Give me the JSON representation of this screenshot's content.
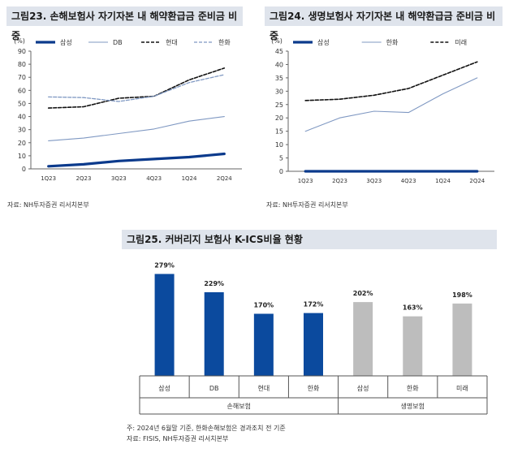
{
  "chart_data": [
    {
      "type": "line",
      "title": "그림23. 손해보험사 자기자본 내 해약환급금 준비금 비중",
      "ylabel": "(%)",
      "ylim": [
        0,
        90
      ],
      "yticks": [
        0,
        10,
        20,
        30,
        40,
        50,
        60,
        70,
        80,
        90
      ],
      "categories": [
        "1Q23",
        "2Q23",
        "3Q23",
        "4Q23",
        "1Q24",
        "2Q24"
      ],
      "series": [
        {
          "name": "삼성",
          "values": [
            2,
            3.5,
            6,
            7.5,
            9,
            11.5
          ],
          "style": "thick",
          "color": "#0b3a8c"
        },
        {
          "name": "DB",
          "values": [
            21.5,
            23.5,
            27,
            30.5,
            36.5,
            40
          ],
          "style": "thin",
          "color": "#7f98c2"
        },
        {
          "name": "현대",
          "values": [
            46.5,
            47.5,
            54,
            55.5,
            68,
            77
          ],
          "style": "dash",
          "color": "#111111"
        },
        {
          "name": "한화",
          "values": [
            55,
            54.5,
            51.5,
            55.5,
            66,
            72
          ],
          "style": "dash-thin",
          "color": "#7f98c2"
        }
      ],
      "grid": false,
      "legend": "top",
      "source": "자료: NH투자증권 리서치본부"
    },
    {
      "type": "line",
      "title": "그림24. 생명보험사 자기자본 내 해약환급금 준비금 비중",
      "ylabel": "(%)",
      "ylim": [
        0,
        45
      ],
      "yticks": [
        0,
        5,
        10,
        15,
        20,
        25,
        30,
        35,
        40,
        45
      ],
      "categories": [
        "1Q23",
        "2Q23",
        "3Q23",
        "4Q23",
        "1Q24",
        "2Q24"
      ],
      "series": [
        {
          "name": "삼성",
          "values": [
            0,
            0,
            0,
            0,
            0,
            0
          ],
          "style": "thick",
          "color": "#0b3a8c"
        },
        {
          "name": "한화",
          "values": [
            15,
            20,
            22.5,
            22,
            29,
            35
          ],
          "style": "thin",
          "color": "#7f98c2"
        },
        {
          "name": "미래",
          "values": [
            26.5,
            27,
            28.5,
            31,
            36,
            41
          ],
          "style": "dash",
          "color": "#111111"
        }
      ],
      "grid": false,
      "legend": "top",
      "source": "자료: NH투자증권 리서치본부"
    },
    {
      "type": "bar",
      "title": "그림25. 커버리지 보험사 K-ICS비율 현황",
      "categories": [
        "삼성",
        "DB",
        "현대",
        "한화",
        "삼성",
        "한화",
        "미래"
      ],
      "values": [
        279,
        229,
        170,
        172,
        202,
        163,
        198
      ],
      "data_labels": [
        "279%",
        "229%",
        "170%",
        "172%",
        "202%",
        "163%",
        "198%"
      ],
      "groups": [
        {
          "name": "손해보험",
          "count": 4,
          "color": "#0b4a9e"
        },
        {
          "name": "생명보험",
          "count": 3,
          "color": "#bdbdbd"
        }
      ],
      "ylim": [
        0,
        300
      ],
      "grid": false,
      "note": "주: 2024년 6월말 기준, 한화손해보험은 경과조치 전 기준",
      "source": "자료: FISIS, NH투자증권 리서치본부"
    }
  ]
}
